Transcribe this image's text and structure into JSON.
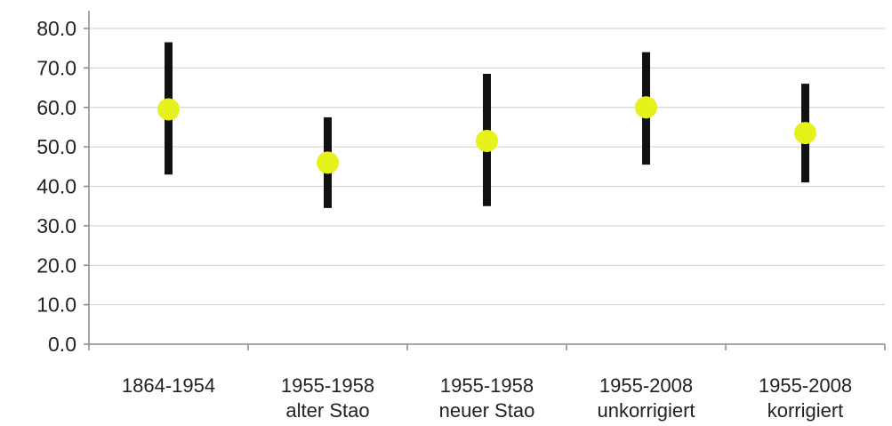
{
  "chart_data": {
    "type": "scatter",
    "title": "",
    "xlabel": "",
    "ylabel": "",
    "ylim": [
      0,
      80
    ],
    "y_ticks": [
      "0.0",
      "10.0",
      "20.0",
      "30.0",
      "40.0",
      "50.0",
      "60.0",
      "70.0",
      "80.0"
    ],
    "grid": true,
    "categories": [
      [
        "1864-1954"
      ],
      [
        "1955-1958",
        "alter Stao"
      ],
      [
        "1955-1958",
        "neuer Stao"
      ],
      [
        "1955-2008",
        "unkorrigiert"
      ],
      [
        "1955-2008",
        "korrigiert"
      ]
    ],
    "series": [
      {
        "values": [
          59.5,
          46.0,
          51.5,
          60.0,
          53.5
        ],
        "low": [
          43.0,
          34.5,
          35.0,
          45.5,
          41.0
        ],
        "high": [
          76.5,
          57.5,
          68.5,
          74.0,
          66.0
        ]
      }
    ],
    "colors": {
      "marker": "#e6f21c",
      "error_bar": "#111111",
      "grid": "#cfcfcf",
      "axis": "#8a8a8a"
    }
  }
}
